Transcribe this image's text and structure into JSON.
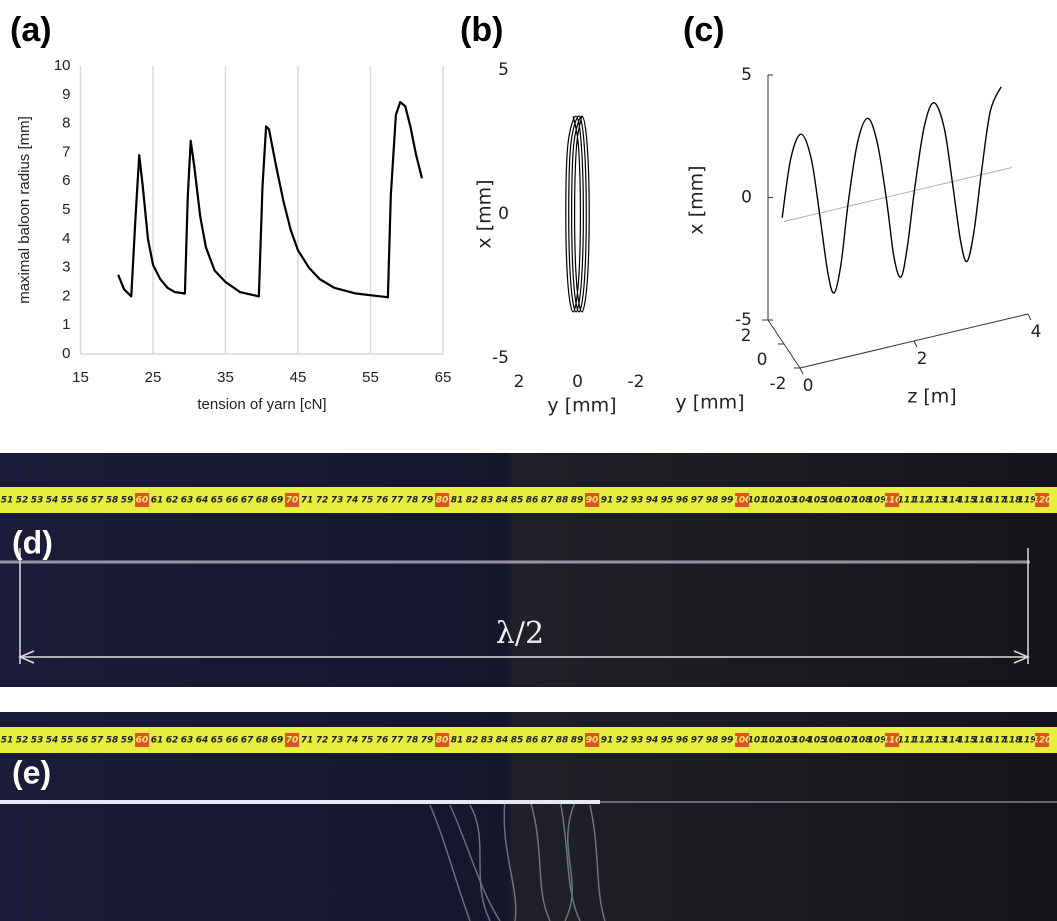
{
  "chart_data": [
    {
      "type": "line",
      "label": "(a)",
      "color": "#000000",
      "grid": "x",
      "xlabel": "tension of yarn [cN]",
      "ylabel": "maximal baloon radius [mm]",
      "xlim": [
        15,
        65
      ],
      "xticks": [
        15,
        25,
        35,
        45,
        55,
        65
      ],
      "ylim": [
        0,
        10
      ],
      "yticks": [
        0,
        1,
        2,
        3,
        4,
        5,
        6,
        7,
        8,
        9,
        10
      ],
      "x": [
        20.2,
        21,
        22,
        22.6,
        23.1,
        23.6,
        24.3,
        25,
        26,
        27,
        28,
        29.4,
        29.8,
        30.2,
        30.7,
        31.5,
        32.3,
        33.5,
        35,
        37,
        39.6,
        40.1,
        40.6,
        41,
        42,
        43,
        44,
        45,
        46.5,
        48,
        50,
        53,
        57.4,
        57.8,
        58.5,
        59.1,
        59.8,
        60.5,
        61.3,
        62.1
      ],
      "values": [
        2.75,
        2.25,
        2.0,
        4.8,
        6.9,
        5.8,
        4.0,
        3.1,
        2.6,
        2.3,
        2.15,
        2.1,
        5.5,
        7.4,
        6.5,
        4.8,
        3.7,
        2.9,
        2.5,
        2.15,
        2.0,
        5.8,
        7.9,
        7.8,
        6.5,
        5.3,
        4.3,
        3.6,
        3.0,
        2.6,
        2.3,
        2.1,
        1.97,
        5.5,
        8.3,
        8.75,
        8.6,
        7.9,
        6.9,
        6.1
      ]
    },
    {
      "type": "line",
      "label": "(b)",
      "color": "#000000",
      "xlabel": "y [mm]",
      "ylabel": "x [mm]",
      "xlim": [
        2,
        -2
      ],
      "xticks": [
        2,
        0,
        -2
      ],
      "ylim": [
        -5,
        5
      ],
      "yticks": [
        -5,
        0,
        5
      ],
      "x": [
        0.15,
        -0.03,
        -0.1,
        -0.03,
        0.15,
        0.33,
        0.4,
        0.33,
        0.05,
        -0.13,
        -0.2,
        -0.13,
        0.05,
        0.23,
        0.3,
        0.23,
        -0.05,
        -0.23,
        -0.3,
        -0.23,
        -0.05,
        0.13,
        0.2,
        0.13,
        -0.15,
        -0.33,
        -0.4,
        -0.33,
        -0.15,
        0.03,
        0.1,
        0.03,
        -0.15
      ],
      "values": [
        3.4,
        2.4,
        0,
        -2.4,
        -3.4,
        -2.4,
        0,
        2.4,
        3.4,
        2.4,
        0,
        -2.4,
        -3.4,
        -2.4,
        0,
        2.4,
        3.4,
        2.4,
        0,
        -2.4,
        -3.4,
        -2.4,
        0,
        2.4,
        3.4,
        2.4,
        0,
        -2.4,
        -3.4,
        -2.4,
        0,
        2.4,
        3.4
      ]
    },
    {
      "type": "line3d",
      "label": "(c)",
      "color": "#000000",
      "axis_color": "#b0b0b0",
      "zlabel": "z [m]",
      "ylabel": "y [mm]",
      "xlabel": "x [mm]",
      "zlim": [
        0,
        4
      ],
      "zticks": [
        0,
        2,
        4
      ],
      "ylim": [
        -2,
        2
      ],
      "yticks": [
        2,
        0,
        -2
      ],
      "xlim": [
        -5,
        5
      ],
      "xticks": [
        -5,
        0,
        5
      ],
      "z": [
        0.01,
        0.15,
        0.3,
        0.45,
        0.59,
        0.74,
        0.88,
        1.03,
        1.17,
        1.32,
        1.47,
        1.61,
        1.76,
        1.9,
        2.05,
        2.19,
        2.34,
        2.49,
        2.63,
        2.78,
        2.92,
        3.07,
        3.21,
        3.36,
        3.51,
        3.65,
        3.81
      ],
      "x": [
        0,
        2.4,
        3.4,
        2.4,
        0,
        -2.4,
        -3.4,
        -2.4,
        0,
        2.4,
        3.4,
        2.4,
        0,
        -2.4,
        -3.4,
        -2.4,
        0,
        2.4,
        3.4,
        2.4,
        0,
        -2.4,
        -3.4,
        -2.4,
        0,
        2.4,
        3.4
      ],
      "y": [
        0.3,
        0.21,
        0,
        -0.21,
        -0.3,
        -0.21,
        0,
        0.21,
        0.3,
        0.21,
        0,
        -0.21,
        -0.3,
        -0.21,
        0,
        0.21,
        0.3,
        0.21,
        0,
        -0.21,
        -0.3,
        -0.21,
        0,
        0.21,
        0.3,
        0.21,
        0
      ]
    }
  ],
  "photos": [
    {
      "label": "(d)",
      "annotation": "λ/2"
    },
    {
      "label": "(e)"
    }
  ],
  "ruler": [
    51,
    52,
    53,
    54,
    55,
    56,
    57,
    58,
    59,
    60,
    61,
    62,
    63,
    64,
    65,
    66,
    67,
    68,
    69,
    70,
    71,
    72,
    73,
    74,
    75,
    76,
    77,
    78,
    79,
    80,
    81,
    82,
    83,
    84,
    85,
    86,
    87,
    88,
    89,
    90,
    91,
    92,
    93,
    94,
    95,
    96,
    97,
    98,
    99,
    100,
    101,
    102,
    103,
    104,
    105,
    106,
    107,
    108,
    109,
    110,
    111,
    112,
    113,
    114,
    115,
    116,
    117,
    118,
    119,
    120
  ]
}
